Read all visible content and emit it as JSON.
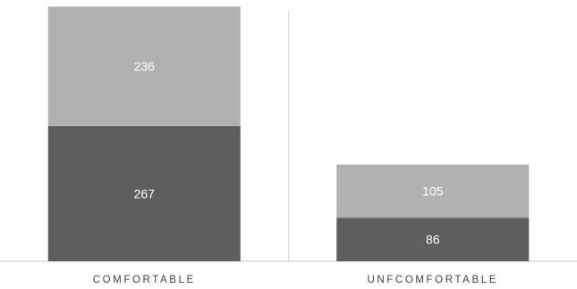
{
  "chart_data": {
    "type": "bar",
    "stacked": true,
    "categories": [
      "COMFORTABLE",
      "UNFCOMFORTABLE"
    ],
    "series": [
      {
        "values": [
          267,
          86
        ],
        "color": "#5e5e5e"
      },
      {
        "values": [
          236,
          105
        ],
        "color": "#b1b1b1"
      }
    ],
    "ylim": [
      0,
      516
    ],
    "grid": false,
    "legend": "none",
    "axis_color": "#d9d9d9",
    "label_color": "#ffffff",
    "category_label_color": "#404040"
  }
}
